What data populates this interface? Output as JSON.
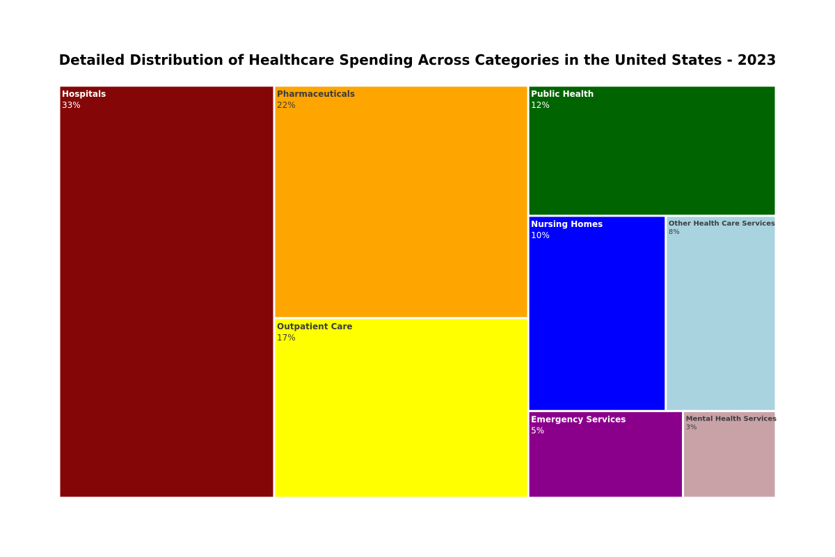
{
  "chart_data": {
    "type": "treemap",
    "title": "Detailed Distribution of Healthcare Spending Across Categories in the United States - 2023",
    "unit": "%",
    "items": [
      {
        "label": "Hospitals",
        "value": 33,
        "value_label": "33%",
        "color": "#850606",
        "text_color": "#ffffff"
      },
      {
        "label": "Pharmaceuticals",
        "value": 22,
        "value_label": "22%",
        "color": "#ffa500",
        "text_color": "#3c3c3c"
      },
      {
        "label": "Outpatient Care",
        "value": 17,
        "value_label": "17%",
        "color": "#ffff00",
        "text_color": "#3c3c3c"
      },
      {
        "label": "Public Health",
        "value": 12,
        "value_label": "12%",
        "color": "#006400",
        "text_color": "#ffffff"
      },
      {
        "label": "Nursing Homes",
        "value": 10,
        "value_label": "10%",
        "color": "#0000ff",
        "text_color": "#ffffff"
      },
      {
        "label": "Other Health Care Services",
        "value": 8,
        "value_label": "8%",
        "color": "#a8d3df",
        "text_color": "#3c3c3c"
      },
      {
        "label": "Emergency Services",
        "value": 5,
        "value_label": "5%",
        "color": "#8b008b",
        "text_color": "#ffffff"
      },
      {
        "label": "Mental Health Services",
        "value": 3,
        "value_label": "3%",
        "color": "#c9a2a8",
        "text_color": "#3c3c3c"
      }
    ]
  }
}
